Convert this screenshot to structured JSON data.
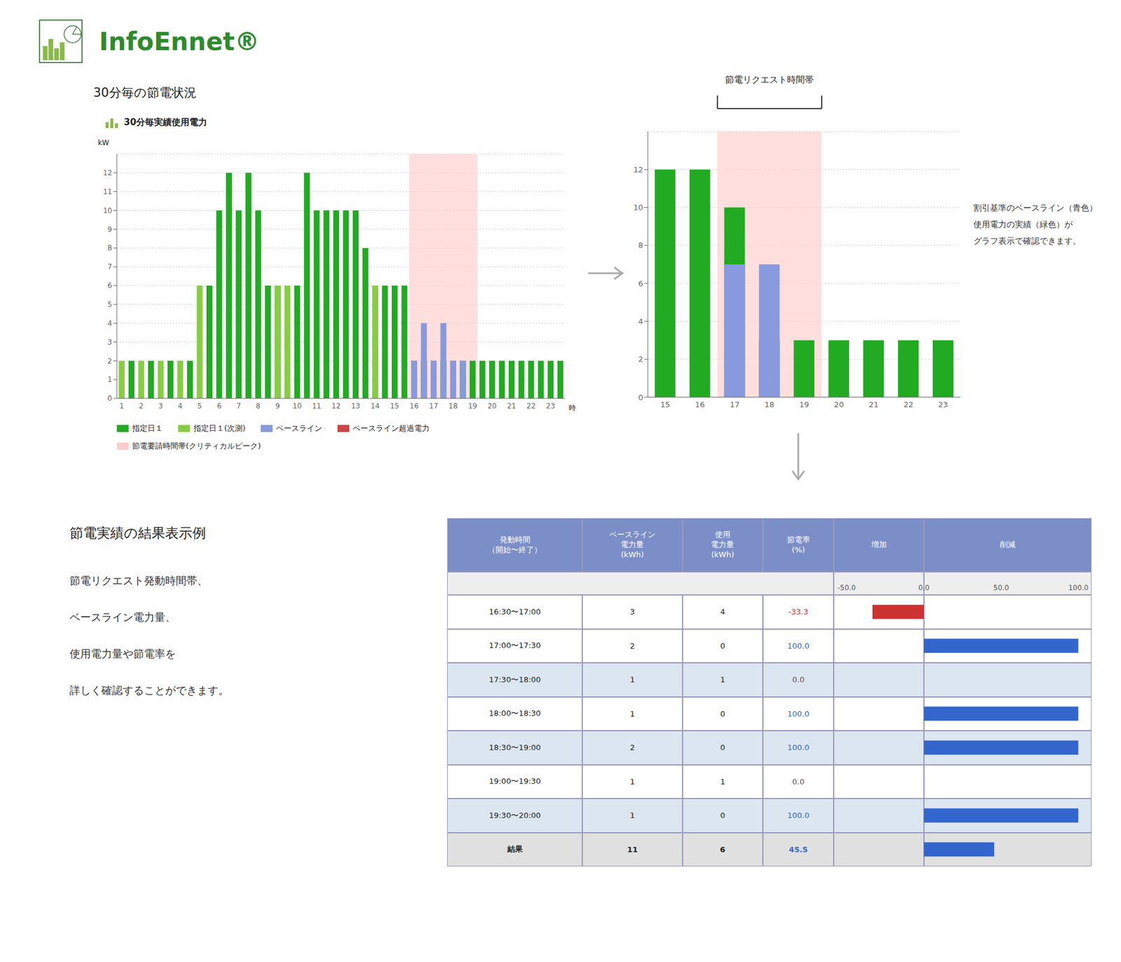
{
  "title": "InfoEnnet®",
  "subtitle": "30分毎の節電状況",
  "chart_data": [
    {
      "type": "bar",
      "title": "30分毎実績使用電力",
      "ylabel": "kW",
      "xlabel": "時",
      "categories": [
        "1",
        null,
        "2",
        null,
        "3",
        null,
        "4",
        null,
        "5",
        null,
        "6",
        null,
        "7",
        null,
        "8",
        null,
        "9",
        null,
        "10",
        null,
        "11",
        null,
        "12",
        null,
        "13",
        null,
        "14",
        null,
        "15",
        null,
        "16",
        null,
        "17",
        null,
        "18",
        null,
        "19",
        null,
        "20",
        null,
        "21",
        null,
        "22",
        null,
        "23",
        null
      ],
      "series": [
        {
          "name": "指定日１",
          "color": "#22aa22",
          "values": [
            0,
            2,
            0,
            2,
            0,
            2,
            0,
            2,
            0,
            6,
            10,
            12,
            10,
            12,
            10,
            6,
            6,
            0,
            6,
            12,
            10,
            10,
            10,
            10,
            10,
            8,
            6,
            6,
            6,
            6,
            2,
            2,
            2,
            2,
            2,
            2,
            2,
            2,
            2,
            2,
            2,
            2,
            2,
            2,
            2,
            2
          ]
        },
        {
          "name": "指定日１(次測)",
          "color": "#88cc44",
          "values": [
            2,
            0,
            2,
            0,
            2,
            0,
            2,
            0,
            6,
            0,
            0,
            0,
            0,
            0,
            0,
            0,
            6,
            6,
            0,
            0,
            0,
            0,
            0,
            0,
            0,
            0,
            6,
            0,
            0,
            0,
            0,
            0,
            0,
            0,
            0,
            0,
            0,
            0,
            0,
            0,
            0,
            0,
            0,
            0,
            0,
            0
          ]
        },
        {
          "name": "ベースライン",
          "color": "#8899dd",
          "values": [
            0,
            0,
            0,
            0,
            0,
            0,
            0,
            0,
            0,
            0,
            0,
            0,
            0,
            0,
            0,
            0,
            0,
            0,
            0,
            0,
            0,
            0,
            0,
            0,
            0,
            0,
            0,
            0,
            0,
            0,
            2,
            4,
            2,
            4,
            2,
            2,
            0,
            0,
            0,
            0,
            0,
            0,
            0,
            0,
            0,
            0
          ]
        },
        {
          "name": "ベースライン超過電力",
          "color": "#cc4444",
          "values": [
            null,
            null,
            null,
            null,
            null,
            null,
            null,
            null,
            null,
            null,
            null,
            null,
            null,
            null,
            null,
            null,
            null,
            null,
            null,
            null,
            null,
            null,
            null,
            null,
            null,
            null,
            null,
            null,
            null,
            null,
            null,
            null,
            null,
            null,
            null,
            null,
            null,
            null,
            null,
            null,
            null,
            null,
            null,
            null,
            null,
            null
          ]
        }
      ],
      "highlight": {
        "from": 30,
        "to": 36,
        "label": "節電要請時間帯(クリティカルピーク)",
        "color": "#ffcccc"
      },
      "ylim": [
        0,
        13
      ],
      "yticks": [
        0,
        1,
        2,
        3,
        4,
        5,
        6,
        7,
        8,
        9,
        10,
        11,
        12
      ],
      "grid": true,
      "legend": "bottom"
    },
    {
      "type": "bar",
      "categories": [
        "15",
        "16",
        "17",
        "18",
        "19",
        "20",
        "21",
        "22",
        "23"
      ],
      "series": [
        {
          "color": "#22aa22",
          "values": [
            12,
            12,
            10,
            3,
            3,
            3,
            3,
            3,
            3
          ]
        },
        {
          "color": "#8899dd",
          "values": [
            0,
            0,
            7,
            7,
            0,
            0,
            0,
            0,
            0
          ]
        }
      ],
      "highlight": {
        "from": 2,
        "to": 4,
        "color": "#ffcccc"
      },
      "ylim": [
        0,
        14
      ],
      "yticks": [
        0,
        2,
        4,
        6,
        8,
        10,
        12
      ],
      "grid": true,
      "annotations": [
        "節電リクエスト時間帯",
        "割引基準のベースライン（青色）\n使用電力の実績（緑色）が\nグラフ表示で確認できます。"
      ]
    },
    {
      "type": "table",
      "title": "節電実績の結果表示例",
      "subtitle": "節電リクエスト発動時間帯、\nベースライン電力量、\n使用電力量や節電率を\n詳しく確認することができます。",
      "columns": [
        "発動時間\n（開始〜終了）",
        "ベースライン\n電力量\n(kWh)",
        "使用\n電力量\n(kWh)",
        "節電率\n(%)",
        "増加",
        "削減"
      ],
      "rows": [
        [
          "16:30〜17:00",
          "3",
          "4",
          "-33.3"
        ],
        [
          "17:00〜17:30",
          "2",
          "0",
          "100.0"
        ],
        [
          "17:30〜18:00",
          "1",
          "1",
          "0.0"
        ],
        [
          "18:00〜18:30",
          "1",
          "0",
          "100.0"
        ],
        [
          "18:30〜19:00",
          "2",
          "0",
          "100.0"
        ],
        [
          "19:00〜19:30",
          "1",
          "1",
          "0.0"
        ],
        [
          "19:30〜20:00",
          "1",
          "0",
          "100.0"
        ],
        [
          "結果",
          "11",
          "6",
          "45.5"
        ]
      ]
    },
    {
      "type": "bar",
      "orientation": "horizontal",
      "categories": [
        "16:30〜17:00",
        "17:00〜17:30",
        "17:30〜18:00",
        "18:00〜18:30",
        "18:30〜19:00",
        "19:00〜19:30",
        "19:30〜20:00",
        "結果"
      ],
      "values": [
        -33.3,
        100.0,
        0.0,
        100.0,
        100.0,
        0.0,
        100.0,
        45.5
      ],
      "colors": [
        "#cc3333",
        "#3366cc",
        "#555555",
        "#3366cc",
        "#3366cc",
        "#555555",
        "#3366cc",
        "#3366cc"
      ],
      "xlim": [
        -50,
        100
      ],
      "xticks": [
        {
          "value": -50,
          "label": "-50.0"
        },
        {
          "value": 0,
          "label": "0.0"
        },
        {
          "value": 50,
          "label": "50.0"
        },
        {
          "value": 100,
          "label": "100.0"
        }
      ]
    }
  ]
}
